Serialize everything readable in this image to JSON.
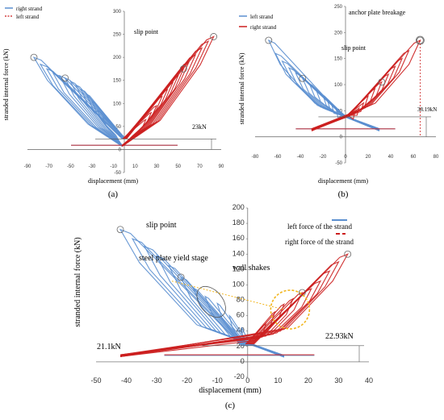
{
  "colors": {
    "blue": "#5b8fd0",
    "red": "#cc1f1f",
    "yellow": "#f2b51c",
    "gray": "#666666"
  },
  "chart_data": [
    {
      "id": "a",
      "type": "line",
      "panel_label": "(a)",
      "xlabel": "displacement (mm)",
      "ylabel": "stranded internal force (kN)",
      "xlim": [
        -90,
        90
      ],
      "ylim": [
        -50,
        300
      ],
      "xticks": [
        -90,
        -70,
        -50,
        -30,
        -10,
        10,
        30,
        50,
        70,
        90
      ],
      "yticks": [
        -50,
        0,
        50,
        100,
        150,
        200,
        250,
        300
      ],
      "legend": {
        "position": "top-left",
        "entries": [
          "right strand",
          "left strand"
        ]
      },
      "annotations": {
        "slip": "slip point",
        "preload": "23kN"
      },
      "series": [
        {
          "name": "right strand",
          "color_key": "blue",
          "style": "solid",
          "peaks": [
            [
              -84,
              200
            ],
            [
              -78,
              185
            ],
            [
              -72,
              175
            ],
            [
              -66,
              165
            ],
            [
              -60,
              160
            ],
            [
              -55,
              155
            ],
            [
              -50,
              148
            ],
            [
              -45,
              140
            ],
            [
              -40,
              130
            ],
            [
              -35,
              120
            ],
            [
              -30,
              105
            ],
            [
              -25,
              85
            ],
            [
              -20,
              70
            ]
          ],
          "baseline": 23,
          "return_x": -2
        },
        {
          "name": "left strand",
          "color_key": "red",
          "style": "dashed",
          "peaks": [
            [
              83,
              245
            ],
            [
              78,
              235
            ],
            [
              72,
              220
            ],
            [
              66,
              205
            ],
            [
              60,
              190
            ],
            [
              55,
              175
            ],
            [
              50,
              160
            ],
            [
              45,
              145
            ],
            [
              40,
              130
            ],
            [
              35,
              115
            ],
            [
              30,
              95
            ],
            [
              25,
              80
            ],
            [
              20,
              65
            ]
          ],
          "baseline": 23,
          "return_x": -2
        }
      ]
    },
    {
      "id": "b",
      "type": "line",
      "panel_label": "(b)",
      "xlabel": "displacement (mm)",
      "ylabel": "stranded internal force (kN)",
      "xlim": [
        -80,
        80
      ],
      "ylim": [
        -50,
        250
      ],
      "xticks": [
        -80,
        -60,
        -40,
        -20,
        0,
        20,
        40,
        60,
        80
      ],
      "yticks": [
        -50,
        0,
        50,
        100,
        150,
        200,
        250
      ],
      "legend": {
        "position": "top-left",
        "entries": [
          "left strand",
          "right strand"
        ]
      },
      "annotations": {
        "slip": "slip point",
        "breakage": "anchor plate breakage",
        "preload": "38.19kN"
      },
      "series": [
        {
          "name": "left strand",
          "color_key": "blue",
          "style": "solid",
          "peaks": [
            [
              -68,
              185
            ],
            [
              -62,
              160
            ],
            [
              -56,
              145
            ],
            [
              -50,
              132
            ],
            [
              -44,
              122
            ],
            [
              -38,
              112
            ],
            [
              -32,
              102
            ],
            [
              -26,
              90
            ],
            [
              -20,
              80
            ],
            [
              -16,
              70
            ],
            [
              -12,
              60
            ],
            [
              -8,
              50
            ]
          ],
          "baseline": 38.19,
          "return_x": 30
        },
        {
          "name": "right strand",
          "color_key": "red",
          "style": "solid",
          "peaks": [
            [
              66,
              185
            ],
            [
              56,
              165
            ],
            [
              50,
              150
            ],
            [
              44,
              135
            ],
            [
              38,
              120
            ],
            [
              32,
              105
            ],
            [
              26,
              92
            ],
            [
              20,
              78
            ],
            [
              16,
              65
            ],
            [
              12,
              55
            ],
            [
              8,
              45
            ]
          ],
          "baseline": 38.19,
          "return_x": -30
        }
      ]
    },
    {
      "id": "c",
      "type": "line",
      "panel_label": "(c)",
      "xlabel": "displacement (mm)",
      "ylabel": "stranded internal force (kN)",
      "xlim": [
        -50,
        40
      ],
      "ylim": [
        -20,
        200
      ],
      "xticks": [
        -50,
        -40,
        -30,
        -20,
        -10,
        0,
        10,
        20,
        30,
        40
      ],
      "yticks": [
        -20,
        0,
        20,
        40,
        60,
        80,
        100,
        120,
        140,
        160,
        180,
        200
      ],
      "legend": {
        "position": "top-right",
        "entries": [
          "left force of the strand",
          "right force of the strand"
        ]
      },
      "annotations": {
        "slip": "slip point",
        "yield": "steel plate yield stage",
        "shakes": "wall shakes",
        "left_preload": "21.1kN",
        "right_preload": "22.93kN"
      },
      "series": [
        {
          "name": "left force of the strand",
          "color_key": "blue",
          "style": "solid",
          "peaks": [
            [
              -42,
              172
            ],
            [
              -38,
              160
            ],
            [
              -34,
              150
            ],
            [
              -30,
              138
            ],
            [
              -26,
              125
            ],
            [
              -22,
              110
            ],
            [
              -18,
              96
            ],
            [
              -14,
              85
            ],
            [
              -10,
              76
            ],
            [
              -6,
              60
            ],
            [
              -2,
              45
            ]
          ],
          "baseline": 21.1,
          "return_x": 12
        },
        {
          "name": "right force of the strand",
          "color_key": "red",
          "style": "dashed",
          "peaks": [
            [
              33,
              140
            ],
            [
              30,
              130
            ],
            [
              27,
              118
            ],
            [
              24,
              105
            ],
            [
              21,
              95
            ],
            [
              18,
              90
            ],
            [
              15,
              82
            ],
            [
              12,
              75
            ],
            [
              9,
              65
            ],
            [
              6,
              50
            ]
          ],
          "baseline": 22.93,
          "return_x": -42
        }
      ]
    }
  ]
}
